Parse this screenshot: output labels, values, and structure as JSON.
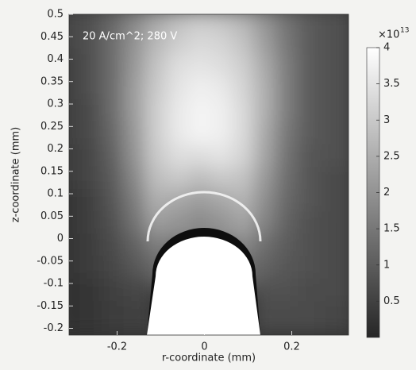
{
  "chart_data": {
    "type": "heatmap",
    "annotation": "20 A/cm^2; 280 V",
    "x_label": "r-coordinate (mm)",
    "y_label": "z-coordinate (mm)",
    "xlim": [
      -0.31,
      0.33
    ],
    "ylim": [
      -0.215,
      0.5
    ],
    "xticks": [
      -0.2,
      0,
      0.2
    ],
    "yticks": [
      -0.2,
      -0.15,
      -0.1,
      -0.05,
      0,
      0.05,
      0.1,
      0.15,
      0.2,
      0.25,
      0.3,
      0.35,
      0.4,
      0.45,
      0.5
    ],
    "x": [
      -0.3,
      -0.25,
      -0.2,
      -0.15,
      -0.1,
      -0.05,
      0,
      0.05,
      0.1,
      0.15,
      0.2,
      0.25,
      0.3
    ],
    "y": [
      0.475,
      0.425,
      0.375,
      0.325,
      0.275,
      0.225,
      0.175,
      0.125,
      0.075,
      0.025,
      -0.025,
      -0.075,
      -0.125,
      -0.175
    ],
    "z": [
      [
        0.6,
        0.8,
        1.2,
        1.8,
        2.4,
        2.8,
        3.0,
        2.9,
        2.6,
        2.0,
        1.4,
        1.0,
        0.8
      ],
      [
        0.6,
        0.8,
        1.3,
        2.0,
        2.7,
        3.1,
        3.3,
        3.2,
        2.9,
        2.2,
        1.5,
        1.0,
        0.8
      ],
      [
        0.5,
        0.8,
        1.3,
        2.1,
        2.9,
        3.4,
        3.5,
        3.4,
        3.1,
        2.4,
        1.6,
        1.0,
        0.8
      ],
      [
        0.5,
        0.8,
        1.3,
        2.2,
        3.0,
        3.5,
        3.7,
        3.6,
        3.2,
        2.5,
        1.6,
        1.0,
        0.8
      ],
      [
        0.5,
        0.7,
        1.3,
        2.2,
        3.1,
        3.6,
        3.8,
        3.7,
        3.3,
        2.5,
        1.6,
        1.0,
        0.8
      ],
      [
        0.5,
        0.7,
        1.2,
        2.1,
        3.1,
        3.6,
        3.8,
        3.7,
        3.3,
        2.4,
        1.5,
        1.0,
        0.8
      ],
      [
        0.4,
        0.6,
        1.1,
        2.0,
        3.0,
        3.4,
        3.4,
        3.5,
        3.2,
        2.3,
        1.4,
        0.9,
        0.8
      ],
      [
        0.4,
        0.6,
        1.0,
        1.8,
        2.8,
        3.0,
        2.8,
        3.0,
        2.9,
        2.1,
        1.3,
        0.9,
        0.7
      ],
      [
        0.3,
        0.5,
        0.9,
        1.6,
        2.5,
        2.4,
        2.2,
        2.4,
        2.6,
        1.9,
        1.2,
        0.9,
        0.7
      ],
      [
        0.3,
        0.5,
        0.8,
        1.4,
        2.2,
        2.0,
        1.8,
        2.0,
        2.3,
        1.7,
        1.1,
        0.8,
        0.7
      ],
      [
        0.3,
        0.4,
        0.7,
        1.1,
        1.6,
        null,
        null,
        null,
        1.8,
        1.3,
        1.0,
        0.8,
        0.7
      ],
      [
        0.3,
        0.4,
        0.6,
        0.9,
        1.2,
        null,
        null,
        null,
        1.3,
        1.1,
        0.9,
        0.8,
        0.7
      ],
      [
        0.2,
        0.3,
        0.5,
        0.6,
        null,
        null,
        null,
        null,
        null,
        0.8,
        0.8,
        0.7,
        0.7
      ],
      [
        0.2,
        0.3,
        0.4,
        0.5,
        null,
        null,
        null,
        null,
        null,
        0.7,
        0.7,
        0.7,
        0.6
      ]
    ],
    "colormap": [
      "#262626",
      "#ffffff"
    ],
    "clim": [
      0,
      4
    ],
    "colorbar_ticks": [
      0.5,
      1,
      1.5,
      2,
      2.5,
      3,
      3.5,
      4
    ],
    "colorbar_multiplier": "×10",
    "colorbar_exponent": "13"
  }
}
